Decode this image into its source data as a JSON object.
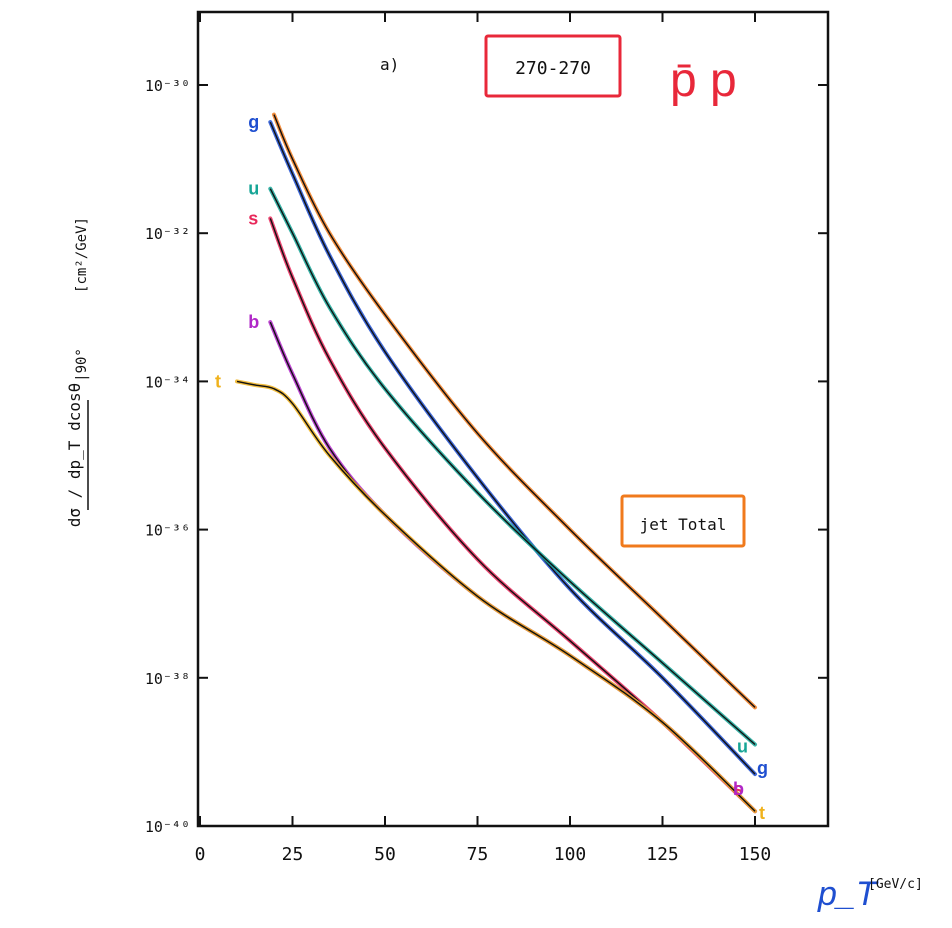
{
  "chart_data": {
    "type": "line",
    "panel_label": "a)",
    "energy_label": "270-270",
    "collision_label": "p̄ p",
    "total_label": "jet Total",
    "xlabel": "p_T",
    "xunit": "[GeV/c]",
    "ylabel_main": "dσ / dp_T dcosθ",
    "ylabel_sub": "|90°",
    "yunit": "[cm²/GeV]",
    "xlim": [
      0,
      150
    ],
    "xticks": [
      "0",
      "25",
      "50",
      "75",
      "100",
      "125",
      "150"
    ],
    "xtick_values": [
      0,
      25,
      50,
      75,
      100,
      125,
      150
    ],
    "yscale": "log",
    "ylim_exp": [
      -40,
      -29.7
    ],
    "yticks": [
      "10⁻³⁰",
      "10⁻³²",
      "10⁻³⁴",
      "10⁻³⁶",
      "10⁻³⁸",
      "10⁻⁴⁰"
    ],
    "ytick_exps": [
      -30,
      -32,
      -34,
      -36,
      -38,
      -40
    ],
    "series": [
      {
        "name": "jet Total",
        "color": "#f07a1c",
        "x": [
          20,
          25,
          35,
          50,
          75,
          100,
          125,
          150
        ],
        "y_exp": [
          -30.4,
          -31.0,
          -32.0,
          -33.1,
          -34.7,
          -36.0,
          -37.2,
          -38.4
        ]
      },
      {
        "name": "g",
        "color": "#1f4fd0",
        "x": [
          19,
          25,
          35,
          50,
          75,
          100,
          125,
          150
        ],
        "y_exp": [
          -30.5,
          -31.2,
          -32.3,
          -33.6,
          -35.3,
          -36.8,
          -38.0,
          -39.3
        ]
      },
      {
        "name": "u",
        "color": "#16a596",
        "x": [
          19,
          25,
          35,
          50,
          75,
          100,
          125,
          150
        ],
        "y_exp": [
          -31.4,
          -32.0,
          -33.0,
          -34.1,
          -35.5,
          -36.7,
          -37.8,
          -38.9
        ]
      },
      {
        "name": "s",
        "color": "#e8285a",
        "x": [
          19,
          25,
          35,
          50,
          75,
          100,
          125,
          150
        ],
        "y_exp": [
          -31.8,
          -32.6,
          -33.7,
          -34.9,
          -36.4,
          -37.5,
          -38.6,
          -39.8
        ]
      },
      {
        "name": "b",
        "color": "#b027c8",
        "x": [
          19,
          25,
          35,
          50,
          75,
          100,
          125,
          150
        ],
        "y_exp": [
          -33.2,
          -33.9,
          -34.9,
          -35.8,
          -36.9,
          -37.7,
          -38.6,
          -39.8
        ]
      },
      {
        "name": "t",
        "color": "#f0b21c",
        "x": [
          10,
          15,
          20,
          25,
          35,
          50,
          75,
          100,
          125,
          150
        ],
        "y_exp": [
          -34.0,
          -34.05,
          -34.1,
          -34.3,
          -35.0,
          -35.8,
          -36.9,
          -37.7,
          -38.6,
          -39.8
        ]
      }
    ]
  }
}
